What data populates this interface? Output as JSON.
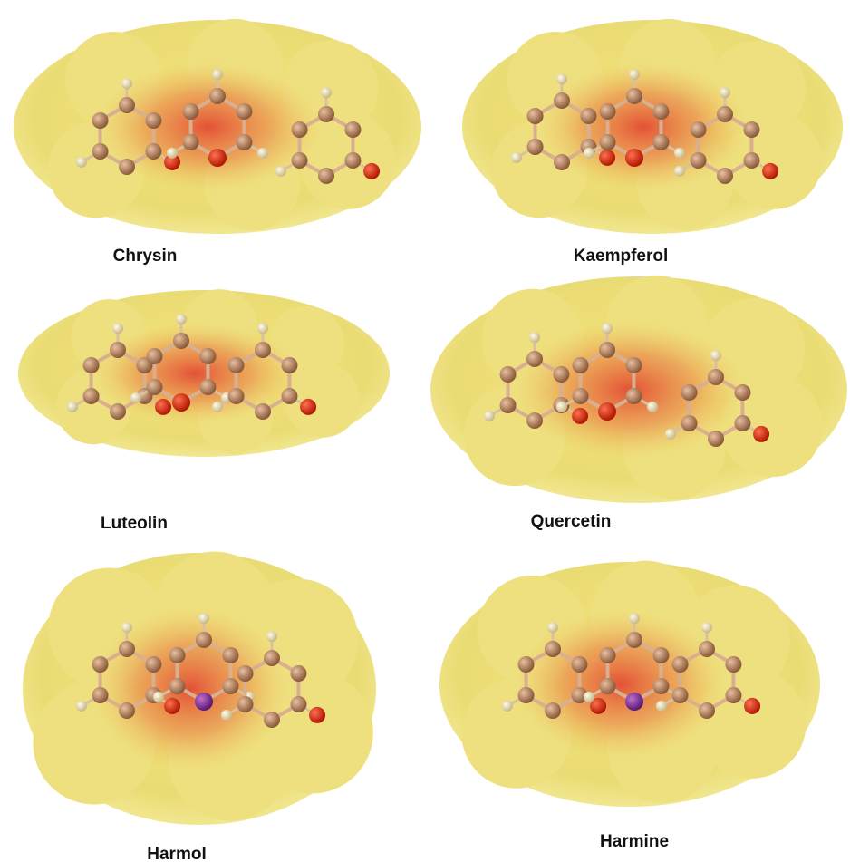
{
  "panels": [
    {
      "label": "Chrysin"
    },
    {
      "label": "Kaempferol"
    },
    {
      "label": "Luteolin"
    },
    {
      "label": "Quercetin"
    },
    {
      "label": "Harmol"
    },
    {
      "label": "Harmine"
    }
  ]
}
